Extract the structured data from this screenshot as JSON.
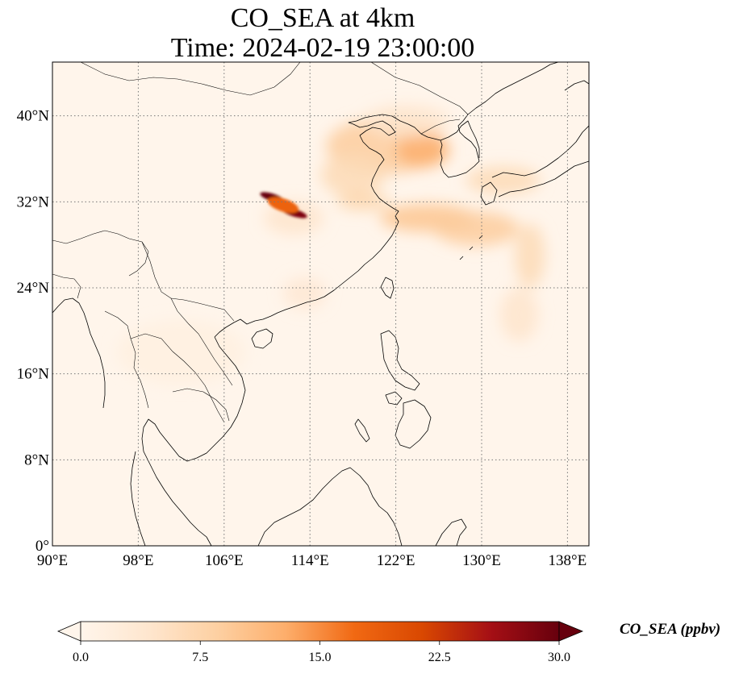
{
  "title": {
    "line1": "CO_SEA at 4km",
    "line2": "Time: 2024-02-19 23:00:00"
  },
  "map": {
    "lon_range": [
      90,
      140
    ],
    "lat_range": [
      0,
      45
    ],
    "x_ticks": [
      {
        "value": 90,
        "label": "90°E"
      },
      {
        "value": 98,
        "label": "98°E"
      },
      {
        "value": 106,
        "label": "106°E"
      },
      {
        "value": 114,
        "label": "114°E"
      },
      {
        "value": 122,
        "label": "122°E"
      },
      {
        "value": 130,
        "label": "130°E"
      },
      {
        "value": 138,
        "label": "138°E"
      }
    ],
    "y_ticks": [
      {
        "value": 0,
        "label": "0°"
      },
      {
        "value": 8,
        "label": "8°N"
      },
      {
        "value": 16,
        "label": "16°N"
      },
      {
        "value": 24,
        "label": "24°N"
      },
      {
        "value": 32,
        "label": "32°N"
      },
      {
        "value": 40,
        "label": "40°N"
      }
    ],
    "background_color": "#fff5eb",
    "plumes": [
      {
        "lon": 121,
        "lat": 37.2,
        "rx": 5.5,
        "ry": 2.6,
        "level": 0.3
      },
      {
        "lon": 124.5,
        "lat": 36.8,
        "rx": 2.5,
        "ry": 1.6,
        "level": 0.42
      },
      {
        "lon": 118,
        "lat": 34.5,
        "rx": 3.0,
        "ry": 2.0,
        "level": 0.22
      },
      {
        "lon": 119,
        "lat": 32.0,
        "rx": 2.5,
        "ry": 0.8,
        "level": 0.25
      },
      {
        "lon": 125,
        "lat": 30.5,
        "rx": 4.5,
        "ry": 1.3,
        "level": 0.33
      },
      {
        "lon": 129.5,
        "lat": 29.5,
        "rx": 4.0,
        "ry": 1.6,
        "level": 0.3
      },
      {
        "lon": 132,
        "lat": 34.0,
        "rx": 3.5,
        "ry": 1.3,
        "level": 0.22
      },
      {
        "lon": 134.5,
        "lat": 27.0,
        "rx": 1.4,
        "ry": 3.0,
        "level": 0.22
      },
      {
        "lon": 133.5,
        "lat": 21.5,
        "rx": 1.8,
        "ry": 2.5,
        "level": 0.15
      },
      {
        "lon": 112.5,
        "lat": 30.5,
        "rx": 2.8,
        "ry": 1.6,
        "level": 0.15
      },
      {
        "lon": 113.5,
        "lat": 23.5,
        "rx": 2.0,
        "ry": 1.5,
        "level": 0.12
      },
      {
        "lon": 123,
        "lat": 39.5,
        "rx": 4.0,
        "ry": 1.5,
        "level": 0.15
      },
      {
        "lon": 102,
        "lat": 18.0,
        "rx": 6.0,
        "ry": 3.0,
        "level": 0.05
      }
    ],
    "hotspots": [
      {
        "lon": 110.5,
        "lat": 32.4,
        "rx": 1.2,
        "ry": 0.35,
        "level": 1.0
      },
      {
        "lon": 112.5,
        "lat": 31.0,
        "rx": 1.3,
        "ry": 0.35,
        "level": 0.95
      },
      {
        "lon": 111.5,
        "lat": 31.7,
        "rx": 1.5,
        "ry": 0.6,
        "level": 0.6
      }
    ]
  },
  "colorbar": {
    "vmin": 0,
    "vmax": 30,
    "colormap": "OrRd",
    "stops": [
      "#fff5eb",
      "#fee6ce",
      "#fdd0a2",
      "#fdae6b",
      "#f16913",
      "#d94801",
      "#a50f15",
      "#67000d"
    ],
    "ticks": [
      {
        "value": 0,
        "label": "0.0"
      },
      {
        "value": 7.5,
        "label": "7.5"
      },
      {
        "value": 15,
        "label": "15.0"
      },
      {
        "value": 22.5,
        "label": "22.5"
      },
      {
        "value": 30,
        "label": "30.0"
      }
    ],
    "label": "CO_SEA (ppbv)"
  }
}
